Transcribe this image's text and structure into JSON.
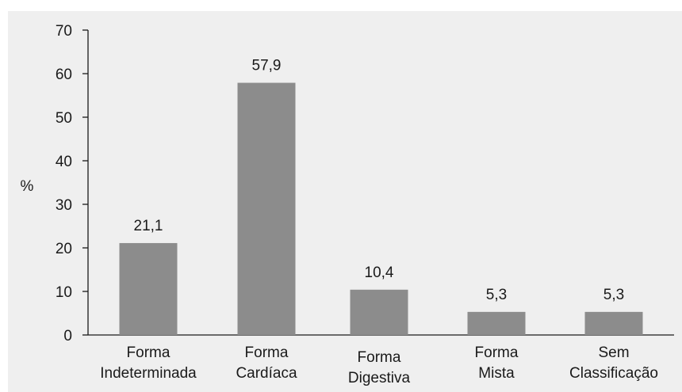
{
  "colors": {
    "background": "#efefef",
    "bar": "#8c8c8c",
    "axis": "#1a1a1a",
    "text": "#1a1a1a"
  },
  "chart_data": {
    "type": "bar",
    "categories": [
      [
        "Forma",
        "Indeterminada"
      ],
      [
        "Forma",
        "Cardíaca"
      ],
      [
        "Forma",
        "Digestiva"
      ],
      [
        "Forma",
        "Mista"
      ],
      [
        "Sem",
        "Classificação"
      ]
    ],
    "values": [
      21.1,
      57.9,
      10.4,
      5.3,
      5.3
    ],
    "value_labels": [
      "21,1",
      "57,9",
      "10,4",
      "5,3",
      "5,3"
    ],
    "title": "",
    "xlabel": "",
    "ylabel": "%",
    "ylim": [
      0,
      70
    ],
    "yticks": [
      0,
      10,
      20,
      30,
      40,
      50,
      60,
      70
    ],
    "grid": false,
    "legend": "none"
  }
}
